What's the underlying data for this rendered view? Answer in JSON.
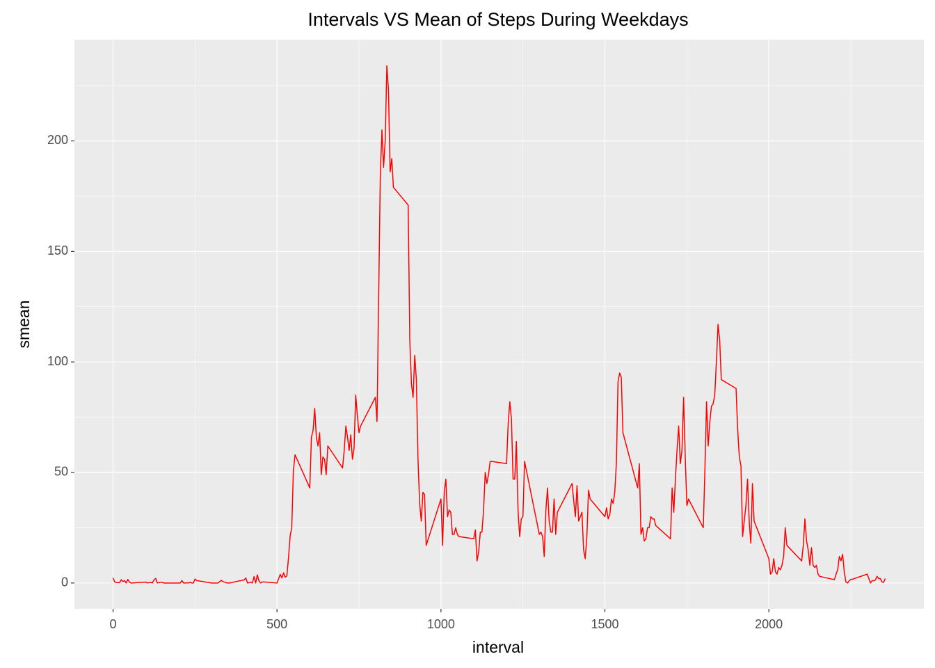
{
  "chart_data": {
    "type": "line",
    "title": "Intervals VS Mean of Steps During Weekdays",
    "x_label": "interval",
    "y_label": "smean",
    "xlim": [
      -117.75,
      2472.75
    ],
    "ylim": [
      -11.7,
      245.8
    ],
    "xticks": [
      0,
      500,
      1000,
      1500,
      2000
    ],
    "yticks": [
      0,
      50,
      100,
      150,
      200
    ],
    "xminorticks": [
      250,
      750,
      1250,
      1750,
      2250
    ],
    "yminorticks": [
      25,
      75,
      125,
      175,
      225
    ],
    "grid": true,
    "x": [
      0,
      5,
      10,
      15,
      20,
      25,
      30,
      35,
      40,
      45,
      50,
      55,
      100,
      105,
      110,
      115,
      120,
      125,
      130,
      135,
      140,
      145,
      150,
      155,
      200,
      205,
      210,
      215,
      220,
      225,
      230,
      235,
      240,
      245,
      250,
      255,
      300,
      305,
      310,
      315,
      320,
      325,
      330,
      335,
      340,
      345,
      350,
      355,
      400,
      405,
      410,
      415,
      420,
      425,
      430,
      435,
      440,
      445,
      450,
      455,
      500,
      505,
      510,
      515,
      520,
      525,
      530,
      535,
      540,
      545,
      550,
      555,
      600,
      605,
      610,
      615,
      620,
      625,
      630,
      635,
      640,
      645,
      650,
      655,
      700,
      705,
      710,
      715,
      720,
      725,
      730,
      735,
      740,
      745,
      750,
      755,
      800,
      805,
      810,
      815,
      820,
      825,
      830,
      835,
      840,
      845,
      850,
      855,
      900,
      905,
      910,
      915,
      920,
      925,
      930,
      935,
      940,
      945,
      950,
      955,
      1000,
      1005,
      1010,
      1015,
      1020,
      1025,
      1030,
      1035,
      1040,
      1045,
      1050,
      1055,
      1100,
      1105,
      1110,
      1115,
      1120,
      1125,
      1130,
      1135,
      1140,
      1145,
      1150,
      1155,
      1200,
      1205,
      1210,
      1215,
      1220,
      1225,
      1230,
      1235,
      1240,
      1245,
      1250,
      1255,
      1300,
      1305,
      1310,
      1315,
      1320,
      1325,
      1330,
      1335,
      1340,
      1345,
      1350,
      1355,
      1400,
      1405,
      1410,
      1415,
      1420,
      1425,
      1430,
      1435,
      1440,
      1445,
      1450,
      1455,
      1500,
      1505,
      1510,
      1515,
      1520,
      1525,
      1530,
      1535,
      1540,
      1545,
      1550,
      1555,
      1600,
      1605,
      1610,
      1615,
      1620,
      1625,
      1630,
      1635,
      1640,
      1645,
      1650,
      1655,
      1700,
      1705,
      1710,
      1715,
      1720,
      1725,
      1730,
      1735,
      1740,
      1745,
      1750,
      1755,
      1800,
      1805,
      1810,
      1815,
      1820,
      1825,
      1830,
      1835,
      1840,
      1845,
      1850,
      1855,
      1900,
      1905,
      1910,
      1915,
      1920,
      1925,
      1930,
      1935,
      1940,
      1945,
      1950,
      1955,
      2000,
      2005,
      2010,
      2015,
      2020,
      2025,
      2030,
      2035,
      2040,
      2045,
      2050,
      2055,
      2100,
      2105,
      2110,
      2115,
      2120,
      2125,
      2130,
      2135,
      2140,
      2145,
      2150,
      2155,
      2200,
      2205,
      2210,
      2215,
      2220,
      2225,
      2230,
      2235,
      2240,
      2245,
      2250,
      2255,
      2300,
      2305,
      2310,
      2315,
      2320,
      2325,
      2330,
      2335,
      2340,
      2345,
      2350,
      2355
    ],
    "series": [
      {
        "name": "smean",
        "color": "#ff0000",
        "values": [
          2.3,
          0.5,
          0.2,
          0.2,
          0.1,
          1.5,
          0.6,
          1.1,
          0,
          1.6,
          0.4,
          0,
          0.4,
          0,
          0.2,
          0.3,
          0,
          1.4,
          2.1,
          0,
          0.2,
          0.3,
          0.3,
          0,
          0,
          0,
          1.1,
          0,
          0,
          0.1,
          0,
          0.3,
          0,
          0,
          1.8,
          1.1,
          0,
          0,
          0,
          0,
          0,
          0.6,
          1.2,
          0.6,
          0.4,
          0.1,
          0,
          0,
          1.4,
          2.3,
          0,
          0.1,
          0.4,
          0,
          2.9,
          0,
          3.7,
          1,
          0,
          0.5,
          0,
          2,
          3.9,
          2.3,
          4.6,
          2.6,
          3.2,
          11.2,
          21.2,
          25,
          51,
          58,
          43,
          66,
          69,
          79,
          66,
          62,
          68,
          49,
          57,
          56,
          49,
          62,
          52,
          60,
          71,
          66,
          60,
          67,
          56,
          61,
          85,
          76,
          68,
          71,
          84,
          73,
          129,
          184,
          205,
          188,
          200,
          234,
          223,
          186,
          192,
          179,
          171,
          110,
          90,
          84,
          103,
          92,
          56,
          36,
          28,
          41,
          40,
          17,
          38,
          17,
          41,
          47,
          30,
          33,
          32,
          22,
          22,
          25,
          22,
          21,
          20,
          24,
          10,
          14,
          23,
          23,
          33,
          50,
          45,
          49,
          55,
          55,
          54,
          72,
          82,
          74,
          47,
          47,
          64,
          33,
          21,
          29,
          30,
          55,
          22,
          23,
          21,
          12,
          33,
          43,
          28,
          23,
          23,
          38,
          22,
          32,
          45,
          37,
          30,
          44,
          28,
          30,
          32,
          15,
          11,
          21,
          42,
          38,
          30,
          34,
          29,
          31,
          38,
          36,
          41,
          54,
          91,
          95,
          93,
          68,
          43,
          54,
          22,
          25,
          19,
          20,
          25,
          25,
          30,
          29,
          29,
          26,
          20,
          43,
          32,
          47,
          60,
          71,
          54,
          60,
          84,
          57,
          35,
          38,
          25,
          51,
          82,
          62,
          73,
          80,
          81,
          85,
          100,
          117,
          110,
          92,
          88,
          69,
          57,
          53,
          21,
          28,
          35,
          47,
          28,
          18,
          45,
          28,
          11,
          4,
          5,
          11,
          5,
          4,
          7,
          6,
          8,
          12,
          25,
          17,
          10,
          17,
          29,
          19,
          15,
          8,
          16,
          8,
          7,
          8,
          4,
          3,
          1.5,
          4,
          6,
          12,
          10,
          13,
          5,
          0.5,
          0,
          1,
          1.6,
          1.7,
          4,
          2,
          0,
          1,
          1,
          1.4,
          3,
          2,
          2,
          0.5,
          0.3,
          2
        ]
      }
    ]
  }
}
